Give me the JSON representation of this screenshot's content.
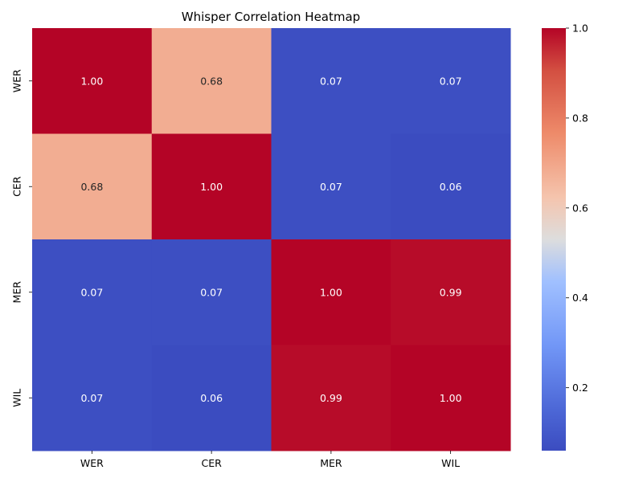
{
  "chart_data": {
    "type": "heatmap",
    "title": "Whisper Correlation Heatmap",
    "x_categories": [
      "WER",
      "CER",
      "MER",
      "WIL"
    ],
    "y_categories": [
      "WER",
      "CER",
      "MER",
      "WIL"
    ],
    "values": [
      [
        1.0,
        0.68,
        0.07,
        0.07
      ],
      [
        0.68,
        1.0,
        0.07,
        0.06
      ],
      [
        0.07,
        0.07,
        1.0,
        0.99
      ],
      [
        0.07,
        0.06,
        0.99,
        1.0
      ]
    ],
    "value_format": "2 decimals",
    "colormap": "coolwarm",
    "colorbar": {
      "min": 0.06,
      "max": 1.0,
      "ticks": [
        "0.2",
        "0.4",
        "0.6",
        "0.8",
        "1.0"
      ]
    }
  }
}
